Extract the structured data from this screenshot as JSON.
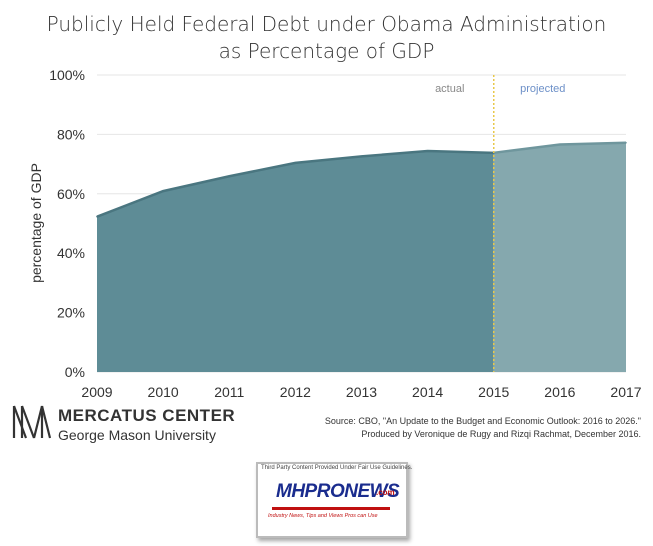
{
  "chart_data": {
    "type": "area",
    "title_line1": "Publicly Held Federal Debt under Obama Administration",
    "title_line2": "as Percentage of GDP",
    "ylabel": "percentage of GDP",
    "xlabel": "",
    "x": [
      2009,
      2010,
      2011,
      2012,
      2013,
      2014,
      2015,
      2016,
      2017
    ],
    "values": [
      52.3,
      60.9,
      65.9,
      70.4,
      72.6,
      74.4,
      73.8,
      76.6,
      77.2
    ],
    "y_ticks": [
      "0%",
      "20%",
      "40%",
      "60%",
      "80%",
      "100%"
    ],
    "ylim": [
      0,
      100
    ],
    "xlim": [
      2009,
      2017
    ],
    "divider_x": 2015,
    "regions": {
      "actual": "actual",
      "projected": "projected"
    },
    "grid": true,
    "colors": {
      "actual_fill": "#5e8c96",
      "actual_line": "#4a7680",
      "projected_fill": "#85a8ae",
      "projected_line": "#6f969d",
      "divider": "#e8c84a",
      "actual_label": "#888888",
      "projected_label": "#6d90c8",
      "grid": "#e6e6e6"
    }
  },
  "logo": {
    "main": "MERCATUS CENTER",
    "sub": "George Mason University"
  },
  "source": {
    "line1": "Source: CBO, \"An Update to the Budget and Economic Outlook: 2016 to 2026.\"",
    "line2": "Produced by Veronique de Rugy and Rizqi Rachmat, December 2016."
  },
  "badge": {
    "top": "Third Party Content Provided Under Fair Use Guidelines.",
    "brand": "MHPRONEWS",
    "com": ".com",
    "tag": "Industry News, Tips and Views Pros can Use"
  }
}
